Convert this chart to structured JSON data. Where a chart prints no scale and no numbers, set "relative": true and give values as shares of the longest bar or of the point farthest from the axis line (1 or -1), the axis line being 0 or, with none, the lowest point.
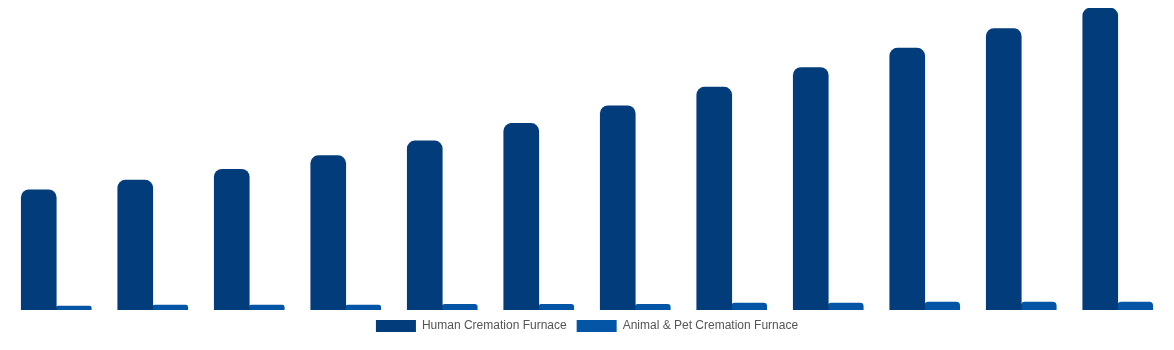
{
  "chart_data": {
    "type": "bar",
    "relative": true,
    "legend": "bottom",
    "categories": [
      null,
      null,
      null,
      null,
      null,
      null,
      null,
      null,
      null,
      null,
      null,
      null
    ],
    "series": [
      {
        "name": "Human Cremation Furnace",
        "color": "#033c7a",
        "values": [
          0.398,
          0.43,
          0.466,
          0.511,
          0.56,
          0.618,
          0.676,
          0.738,
          0.803,
          0.867,
          0.932,
          1
        ]
      },
      {
        "name": "Animal & Pet Cremation Furnace",
        "color": "#0455a6",
        "values": [
          0.013,
          0.016,
          0.016,
          0.016,
          0.019,
          0.019,
          0.019,
          0.023,
          0.023,
          0.026,
          0.026,
          0.026
        ]
      }
    ]
  }
}
